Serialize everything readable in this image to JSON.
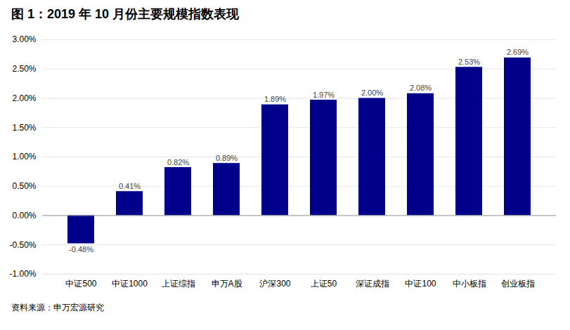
{
  "chart_data": {
    "type": "bar",
    "title": "图 1：2019 年 10 月份主要规模指数表现",
    "caption": "资料来源：申万宏源研究",
    "categories": [
      "中证500",
      "中证1000",
      "上证综指",
      "申万A股",
      "沪深300",
      "上证50",
      "深证成指",
      "中证100",
      "中小板指",
      "创业板指"
    ],
    "values": [
      -0.0048,
      0.0041,
      0.0082,
      0.0089,
      0.0189,
      0.0197,
      0.02,
      0.0208,
      0.0253,
      0.0269
    ],
    "value_labels": [
      "-0.48%",
      "0.41%",
      "0.82%",
      "0.89%",
      "1.89%",
      "1.97%",
      "2.00%",
      "2.08%",
      "2.53%",
      "2.69%"
    ],
    "color": "#00008B",
    "ylim": [
      -0.01,
      0.03
    ],
    "yticks": [
      {
        "value": -0.01,
        "label": "-1.00%"
      },
      {
        "value": -0.005,
        "label": "-0.50%"
      },
      {
        "value": 0.0,
        "label": "0.00%"
      },
      {
        "value": 0.005,
        "label": "0.50%"
      },
      {
        "value": 0.01,
        "label": "1.00%"
      },
      {
        "value": 0.015,
        "label": "1.50%"
      },
      {
        "value": 0.02,
        "label": "2.00%"
      },
      {
        "value": 0.025,
        "label": "2.50%"
      },
      {
        "value": 0.03,
        "label": "3.00%"
      }
    ],
    "grid": true,
    "data_labels": true
  }
}
